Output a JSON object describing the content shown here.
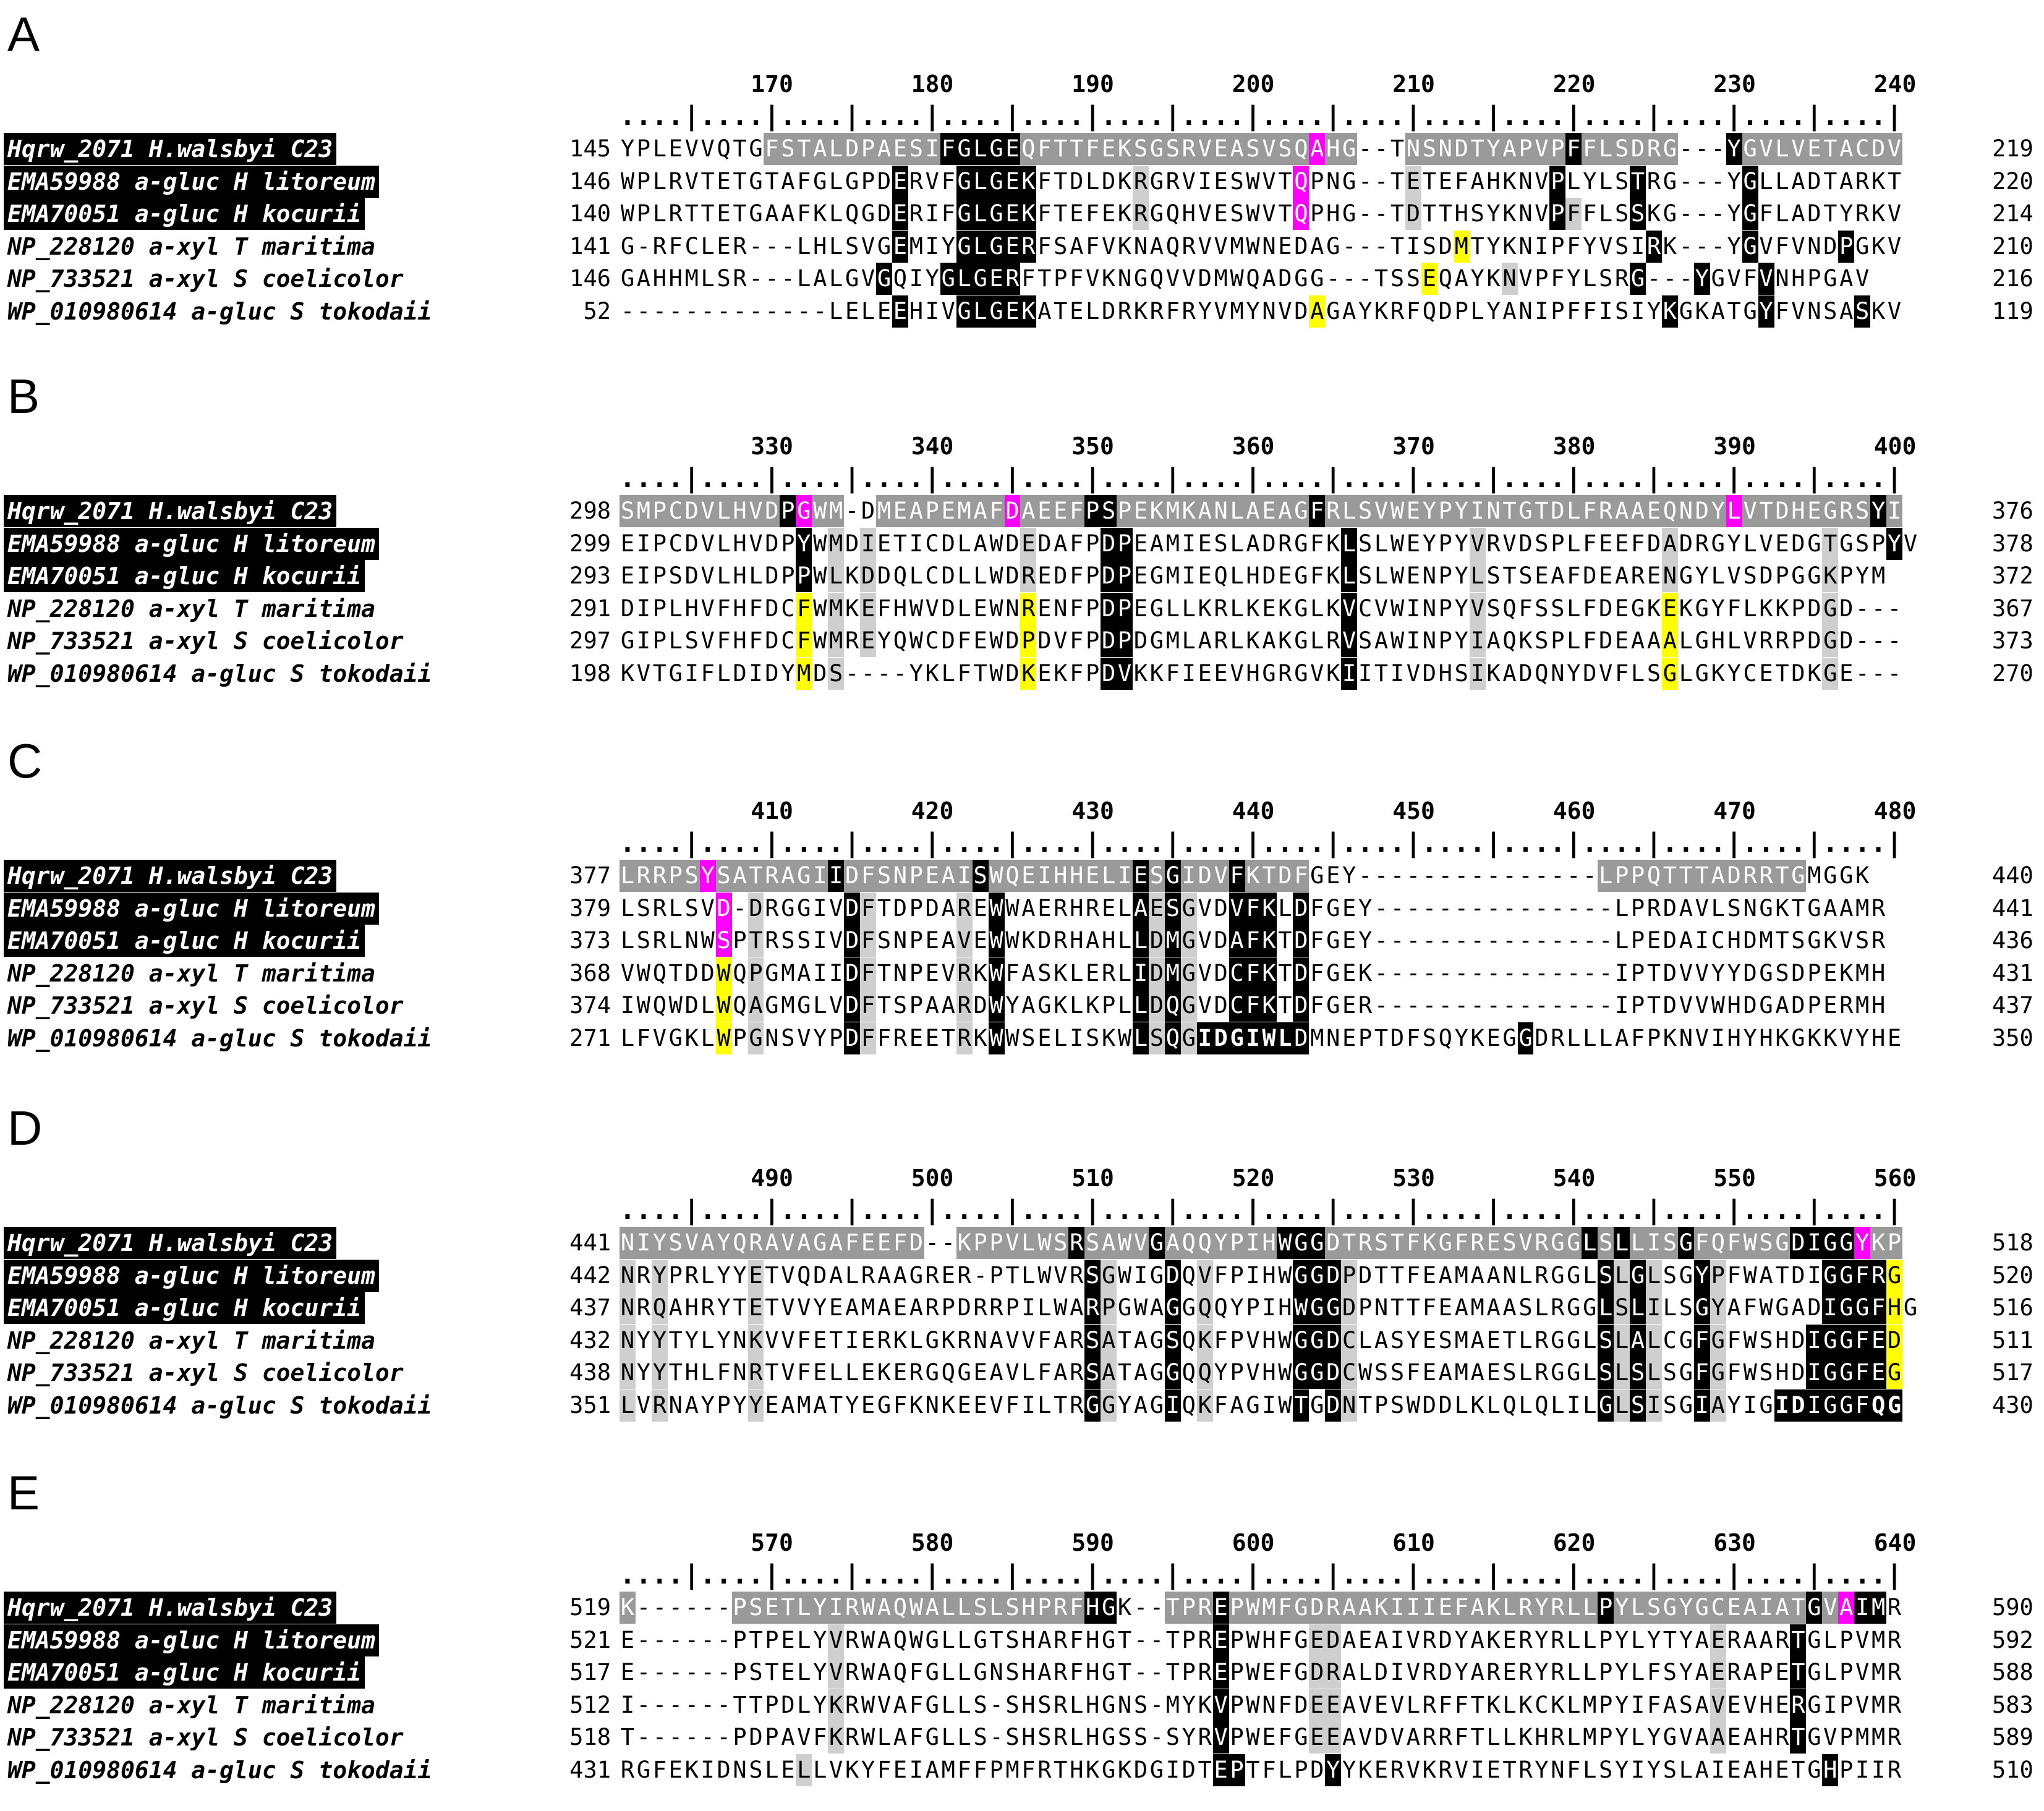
{
  "colors": {
    "identical": "#000000",
    "reference_block": "#9a9a9a",
    "similar": "#cfcfcf",
    "highlight_magenta": "#ff00ff",
    "highlight_yellow": "#ffff00"
  },
  "panels": [
    {
      "letter": "A",
      "ruler_numbers": [
        "170",
        "180",
        "190",
        "200",
        "210",
        "220",
        "230",
        "240"
      ],
      "ruler_line": "....|....|....|....|....|....|....|....|....|....|....|....|....|....|....|....|",
      "rows": [
        {
          "label": "Hqrw_2071 H.walsbyi C23",
          "highlight": true,
          "start": "145",
          "seq": "YPLEVVQTGFSTALDPAESIFGLGEQFTTFEKSGSRVEASVSQAHG--TNSNDTYAPVPFFLSDRG---YGVLVETACDV",
          "end": "219",
          "marks": ".........dddddddddddkkkkkddddddddddddddddddmddd..ddddddddddkdddddd...kdddddddddd"
        },
        {
          "label": "EMA59988 a-gluc H litoreum",
          "highlight": true,
          "start": "146",
          "seq": "WPLRVTETGTAFGLGPDERVFGLGEKFTDLDKRGRVIESWVTQPNG--TETEFAHKNVPLYLSTRG---YGLLADTARKT",
          "end": "220",
          "marks": ".................k...kkkkk......g.........m......g........k....k......k..........."
        },
        {
          "label": "EMA70051 a-gluc H kocurii",
          "highlight": true,
          "start": "140",
          "seq": "WPLRTTETGAAFKLQGDERIFGLGEKFTEFEKRGQHVESWVTQPHG--TDTTHSYKNVPFFLSSKG---YGFLADTYRKV",
          "end": "214",
          "marks": ".................k...kkkkk......g.........m......g........kg...k......k..........."
        },
        {
          "label": "NP_228120 a-xyl T maritima",
          "highlight": false,
          "start": "141",
          "seq": "G-RFCLER---LHLSVGEMIYGLGERFSAFVKNAQRVVMWNEDAG---TISDMTYKNIPFYVSIRK---YGVFVNDPGKV",
          "end": "210",
          "marks": ".................k...kkkkk..........................y...........k.....k.....k........"
        },
        {
          "label": "NP_733521 a-xyl S coelicolor",
          "highlight": false,
          "start": "146",
          "seq": "GAHHMLSR---LALGVGQIYGLGERFTPFVKNGQVVDMWQADGG---TSSEQAYKNVPFYLSRG---YGVFVNHPGAV",
          "end": "216",
          "marks": "................k...kkkkk.........................y....g.......k...k...k........."
        },
        {
          "label": "WP_010980614 a-gluc S tokodaii",
          "highlight": false,
          "start": "52",
          "seq": "-------------LELEEHIVGLGEKATELDRKRFRYVMYNVDAGAYKRFQDPLYANIPFFISIYKGKATGYFVNSASKV",
          "end": "119",
          "marks": ".................k...kkkkk.................y.....................k.....k.....k......"
        }
      ]
    },
    {
      "letter": "B",
      "ruler_numbers": [
        "330",
        "340",
        "350",
        "360",
        "370",
        "380",
        "390",
        "400"
      ],
      "ruler_line": "....|....|....|....|....|....|....|....|....|....|....|....|....|....|....|....|",
      "rows": [
        {
          "label": "Hqrw_2071 H.walsbyi C23",
          "highlight": true,
          "start": "298",
          "seq": "SMPCDVLHVDPGWM-DMEAPEMAFDAEEFPSPEKMKANLAEAGFRLSVWEYPYINTGTDLFRAAEQNDYLVTDHEGRSYI",
          "end": "376",
          "marks": "ddddddddddkmddd.ddddddddmddddkkddddddddddddkdddddddddddddddddddddddddmddddddddkdddd"
        },
        {
          "label": "EMA59988 a-gluc H litoreum",
          "highlight": true,
          "start": "299",
          "seq": "EIPCDVLHVDPYWMDIETICDLAWDEDAFPDPEAMIESLADRGFKLSLWEYPYVRVDSPLFEEFDADRGYLVEDGTGSPYV",
          "end": "378",
          "marks": "...........k.g.g.........g....kk.............k.......g...........g.........g...k....."
        },
        {
          "label": "EMA70051 a-gluc H kocurii",
          "highlight": true,
          "start": "293",
          "seq": "EIPSDVLHLDPPWLKDDQLCDLLWDREDFPDPEGMIEQLHDEGFKLSLWENPYLSTSEAFDEARENGYLVSDPGGKPYM",
          "end": "372",
          "marks": "...........k.g.g.........g....kk.............k.......g...........g.........g...k....."
        },
        {
          "label": "NP_228120 a-xyl T maritima",
          "highlight": false,
          "start": "291",
          "seq": "DIPLHVFHFDCFWMKEFHWVDLEWNRENFPDPEGLLKRLKEKGLKVCVWINPYVSQFSSLFDEGKEKGYFLKKPDGD---",
          "end": "367",
          "marks": "...........y.g.g.........y....kk.............k.......g...........y.........g...k....."
        },
        {
          "label": "NP_733521 a-xyl S coelicolor",
          "highlight": false,
          "start": "297",
          "seq": "GIPLSVFHFDCFWMREYQWCDFEWDPDVFPDPDGMLARLKAKGLRVSAWINPYIAQKSPLFDEAAALGHLVRRPDGD---",
          "end": "373",
          "marks": "...........y.g.g.........y....kk.............k.......g...........y.........g...k....."
        },
        {
          "label": "WP_010980614 a-gluc S tokodaii",
          "highlight": false,
          "start": "198",
          "seq": "KVTGIFLDIDYMDS----YKLFTWDKEKFPDVKKFIEEVHGRGVKIITIVDHSIKADQNYDVFLSGLGKYCETDKGE---",
          "end": "270",
          "marks": "...........y.g.g.........y....kk.............k.......g...........y.........g...k....."
        }
      ]
    },
    {
      "letter": "C",
      "ruler_numbers": [
        "410",
        "420",
        "430",
        "440",
        "450",
        "460",
        "470",
        "480"
      ],
      "ruler_line": "....|....|....|....|....|....|....|....|....|....|....|....|....|....|....|....|",
      "rows": [
        {
          "label": "Hqrw_2071 H.walsbyi C23",
          "highlight": true,
          "start": "377",
          "seq": "LRRPSYSATRAGIIDFSNPEAISWQEIHHELIESGIDVFKTDFGEY---------------LPPQTTTADRRTGMGGK",
          "end": "440",
          "marks": "dddddmdddddddkddddddddkdddddddddkdkdddkdddd...............kddddddddddddddd"
        },
        {
          "label": "EMA59988 a-gluc H litoreum",
          "highlight": true,
          "start": "379",
          "seq": "LSRLSVD-DRGGIVDFTDPDAREWWAERHRELAESGVDVFKLDFGEY---------------LPRDAVLSNGKTGAAMR",
          "end": "441",
          "marks": "......m.g.....kg.....g.k........kgkg..kkk.k...............k..............."
        },
        {
          "label": "EMA70051 a-gluc H kocurii",
          "highlight": true,
          "start": "373",
          "seq": "LSRLNWSPTRSSIVDFSNPEAVEWWKDRHAHLLDMGVDAFKTDFGEY---------------LPEDAICHDMTSGKVSR",
          "end": "436",
          "marks": "......m.g.....kg.....g.k........kgkg..kkk.k...............k..............."
        },
        {
          "label": "NP_228120 a-xyl T maritima",
          "highlight": false,
          "start": "368",
          "seq": "VWQTDDWQPGMAIIDFTNPEVRKWFASKLERLIDMGVDCFKTDFGEK---------------IPTDVVYYDGSDPEKMH",
          "end": "431",
          "marks": "......y.g.....kg.....g.k........kgkg..kkk.k...............k..............."
        },
        {
          "label": "NP_733521 a-xyl S coelicolor",
          "highlight": false,
          "start": "374",
          "seq": "IWQWDLWQAGMGLVDFTSPAARDWYAGKLKPLLDQGVDCFKTDFGER---------------IPTDVVWHDGADPERMH",
          "end": "437",
          "marks": "......y.g.....kg.....g.k........kgkg..kkk.k...............k..............."
        },
        {
          "label": "WP_010980614 a-gluc S tokodaii",
          "highlight": false,
          "start": "271",
          "seq": "LFVGKLWPGNSVYPDFFREETRKWWSELISKWLSQGIDGIWLDMNEPTDFSQYKEGGDRLLLAFPKNVIHYHKGKKVYHE",
          "end": "350",
          "marks": "......y.g.....kg.....g.k........kgkgbbbbbbk.............k..............."
        }
      ]
    },
    {
      "letter": "D",
      "ruler_numbers": [
        "490",
        "500",
        "510",
        "520",
        "530",
        "540",
        "550",
        "560"
      ],
      "ruler_line": "....|....|....|....|....|....|....|....|....|....|....|....|....|....|....|....|",
      "rows": [
        {
          "label": "Hqrw_2071 H.walsbyi C23",
          "highlight": true,
          "start": "441",
          "seq": "NIYSVAYQRAVAGAFEEFD--KPPVLWSRSAWVGAQQYPIHWGGDTRSTFKGFRESVRGGLSLLISGFQFWSGDIGGYKP",
          "end": "518",
          "marks": "ddddddddddddddddddd..dddddddkddddkdddddddkkkddddddddddddddddkdkdddkddddddkkkkmdd"
        },
        {
          "label": "EMA59988 a-gluc H litoreum",
          "highlight": true,
          "start": "442",
          "seq": "NRYPRLYYETVQDALRAAGRER-PTLWVRSGWIGDQVFPIHWGGDPDTTFEAMAANLRGGLSLGLSGYPFWATDIGGFRG",
          "end": "520",
          "marks": "g.g.....g....................kg...k.g.....kkkg...............kgkg..kg......kkkky.."
        },
        {
          "label": "EMA70051 a-gluc H kocurii",
          "highlight": true,
          "start": "437",
          "seq": "NRQAHRYTETVVYEAMAEARPDRRPILWARPGWAGGQQYPIHWGGDPNTTFEAMAASLRGGLSLILSGYAFWGADIGGFHG",
          "end": "516",
          "marks": "g.g.....g....................kg...k.g.....kkkg...............kgkg..kg......kkkky.."
        },
        {
          "label": "NP_228120 a-xyl T maritima",
          "highlight": false,
          "start": "432",
          "seq": "NYYTYLYNKVVFETIERKLGKRNAVVFARSATAGSQKFPVHWGGDCLASYESMAETLRGGLSLALCGFGFWSHDIGGFED",
          "end": "511",
          "marks": "g.g.....g....................kg...k.g.....kkkg...............kgkg..kg.....kkkkky.."
        },
        {
          "label": "NP_733521 a-xyl S coelicolor",
          "highlight": false,
          "start": "438",
          "seq": "NYYTHLFNRTVFELLEKERGQGEAVLFARSATAGGQQYPVHWGGDCWSSFEAMAESLRGGLSLSLSGFGFWSHDIGGFEG",
          "end": "517",
          "marks": "g.g.....g....................kg...k.g.....kkkg...............kgkg..kg.....kkkkky.."
        },
        {
          "label": "WP_010980614 a-gluc S tokodaii",
          "highlight": false,
          "start": "351",
          "seq": "LVRNAYPYYEAMATYEGFKNKEEVFILTRGGYAGIQKFAGIWTGDNTPSWDDLKLQLQLILGLSISGIAYIGIDIGGFQG",
          "end": "430",
          "marks": "g.g.....g....................kg...k.g.....k.kg...............kgkg..kg...bbkkkkbb.."
        }
      ]
    },
    {
      "letter": "E",
      "ruler_numbers": [
        "570",
        "580",
        "590",
        "600",
        "610",
        "620",
        "630",
        "640"
      ],
      "ruler_line": "....|....|....|....|....|....|....|....|....|....|....|....|....|....|....|....|",
      "rows": [
        {
          "label": "Hqrw_2071 H.walsbyi C23",
          "highlight": true,
          "start": "519",
          "seq": "K------PSETLYIRWAQWALLSLSHPRFHGK--TPREPWMFGDRAAKIIIEFAKLRYRLLPYLSGYGCEAIATGVAIMR",
          "end": "590",
          "marks": "d......ddddddddddddddddddddddkk..ddddkdddddddddddddddddddddddkddddddddddddkdmkk"
        },
        {
          "label": "EMA59988 a-gluc H litoreum",
          "highlight": true,
          "start": "521",
          "seq": "E------PTPELYVRWAQWGLLGTSHARFHGT--TPREPWHFGEDAEAIVRDYAKERYRLLPYLYTYAERAARTGLPVMR",
          "end": "592",
          "marks": ".............g.......................k.....gg.......................g....k.......ykk"
        },
        {
          "label": "EMA70051 a-gluc H kocurii",
          "highlight": true,
          "start": "517",
          "seq": "E------PSTELYVRWAQFGLLGNSHARFHGT--TPREPWEFGDRALDIVRDYARERYRLLPYLFSYAERAPETGLPVMR",
          "end": "588",
          "marks": ".............g.......................k.....gg.......................g....k.......ykk"
        },
        {
          "label": "NP_228120 a-xyl T maritima",
          "highlight": false,
          "start": "512",
          "seq": "I------TTPDLYKRWVAFGLLS-SHSRLHGNS-MYKVPWNFDEEAVEVLRFFTKLKCKLMPYIFASAVEVHERGIPVMR",
          "end": "583",
          "marks": ".............g.......................k.....gg.......................g....k.......ykk"
        },
        {
          "label": "NP_733521 a-xyl S coelicolor",
          "highlight": false,
          "start": "518",
          "seq": "T------PDPAVFKRWLAFGLLS-SHSRLHGSS-SYRVPWEFGEEAVDVARRFTLLKHRLMPYLYGVAAEAHRTGVPMMR",
          "end": "589",
          "marks": ".............g.......................k.....gg.......................g....k.......ykk"
        },
        {
          "label": "WP_010980614 a-gluc S tokodaii",
          "highlight": false,
          "start": "431",
          "seq": "RGFEKIDNSLELLVKYFEIAMFFPMFRTHKGKDGIDTEPTFLPDYYKERVKRVIETRYNFLSYIYSLAIEAHETGHPIIR",
          "end": "510",
          "marks": "...........g.........................kk.....k..............................k.......ykk"
        }
      ]
    }
  ]
}
